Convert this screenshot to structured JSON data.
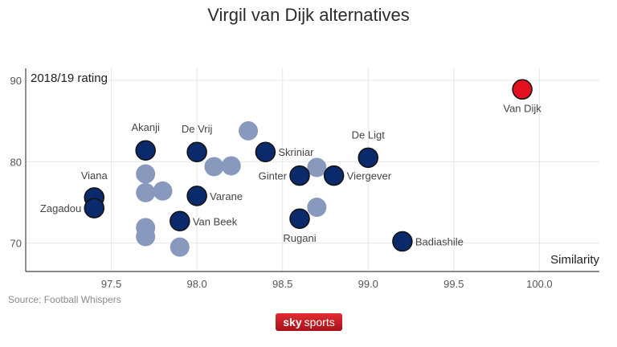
{
  "source": "Source: Football Whispers",
  "logo": {
    "word1": "sky",
    "word2": "sports"
  },
  "chart_data": {
    "type": "scatter",
    "title": "Virgil van Dijk alternatives",
    "xlabel": "Similarity",
    "ylabel": "2018/19 rating",
    "xlim": [
      97.0,
      100.35
    ],
    "ylim": [
      66.5,
      91.5
    ],
    "xticks": [
      "97.5",
      "98.0",
      "98.5",
      "99.0",
      "99.5",
      "100.0"
    ],
    "yticks": [
      "70",
      "80",
      "90"
    ],
    "grid": true,
    "colors": {
      "highlight": "#e3101f",
      "labeled": "#0a2a6b",
      "unlabeled": "#8899bd"
    },
    "points": [
      {
        "name": "Van Dijk",
        "x": 99.9,
        "y": 88.9,
        "group": "highlight"
      },
      {
        "name": "De Ligt",
        "x": 99.0,
        "y": 80.5,
        "group": "labeled"
      },
      {
        "name": "Viergever",
        "x": 98.8,
        "y": 78.3,
        "group": "labeled"
      },
      {
        "name": "Ginter",
        "x": 98.6,
        "y": 78.3,
        "group": "labeled"
      },
      {
        "name": "Skriniar",
        "x": 98.4,
        "y": 81.2,
        "group": "labeled"
      },
      {
        "name": "De Vrij",
        "x": 98.0,
        "y": 81.2,
        "group": "labeled"
      },
      {
        "name": "Akanji",
        "x": 97.7,
        "y": 81.4,
        "group": "labeled"
      },
      {
        "name": "Varane",
        "x": 98.0,
        "y": 75.8,
        "group": "labeled"
      },
      {
        "name": "Van Beek",
        "x": 97.9,
        "y": 72.7,
        "group": "labeled"
      },
      {
        "name": "Rugani",
        "x": 98.6,
        "y": 73.0,
        "group": "labeled"
      },
      {
        "name": "Badiashile",
        "x": 99.2,
        "y": 70.2,
        "group": "labeled"
      },
      {
        "name": "Viana",
        "x": 97.4,
        "y": 75.6,
        "group": "labeled"
      },
      {
        "name": "Zagadou",
        "x": 97.4,
        "y": 74.3,
        "group": "labeled"
      },
      {
        "name": "",
        "x": 98.3,
        "y": 83.8,
        "group": "unlabeled"
      },
      {
        "name": "",
        "x": 98.1,
        "y": 79.4,
        "group": "unlabeled"
      },
      {
        "name": "",
        "x": 98.2,
        "y": 79.5,
        "group": "unlabeled"
      },
      {
        "name": "",
        "x": 98.7,
        "y": 79.3,
        "group": "unlabeled"
      },
      {
        "name": "",
        "x": 97.7,
        "y": 78.5,
        "group": "unlabeled"
      },
      {
        "name": "",
        "x": 97.7,
        "y": 76.2,
        "group": "unlabeled"
      },
      {
        "name": "",
        "x": 97.8,
        "y": 76.4,
        "group": "unlabeled"
      },
      {
        "name": "",
        "x": 98.7,
        "y": 74.4,
        "group": "unlabeled"
      },
      {
        "name": "",
        "x": 97.7,
        "y": 71.9,
        "group": "unlabeled"
      },
      {
        "name": "",
        "x": 97.7,
        "y": 70.8,
        "group": "unlabeled"
      },
      {
        "name": "",
        "x": 97.9,
        "y": 69.5,
        "group": "unlabeled"
      }
    ]
  }
}
